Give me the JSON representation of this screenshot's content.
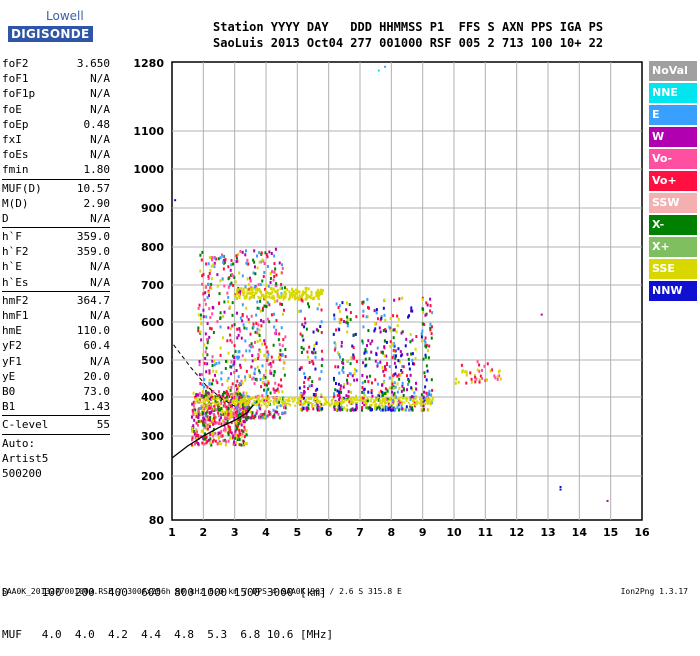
{
  "logo": {
    "line1": "Lowell",
    "line2": "DIGISONDE"
  },
  "header": {
    "line1": "Station YYYY DAY   DDD HHMMSS P1  FFS S AXN PPS IGA PS",
    "line2": "SaoLuis 2013 Oct04 277 001000 RSF 005 2 713 100 10+ 22"
  },
  "params_group1": [
    {
      "label": "foF2",
      "value": "3.650"
    },
    {
      "label": "foF1",
      "value": "N/A"
    },
    {
      "label": "foF1p",
      "value": "N/A"
    },
    {
      "label": "foE",
      "value": "N/A"
    },
    {
      "label": "foEp",
      "value": "0.48"
    },
    {
      "label": "fxI",
      "value": "N/A"
    },
    {
      "label": "foEs",
      "value": "N/A"
    },
    {
      "label": "fmin",
      "value": "1.80"
    }
  ],
  "params_group2": [
    {
      "label": "MUF(D)",
      "value": "10.57"
    },
    {
      "label": "M(D)",
      "value": "2.90"
    },
    {
      "label": "D",
      "value": "N/A"
    }
  ],
  "params_group3": [
    {
      "label": "h`F",
      "value": "359.0"
    },
    {
      "label": "h`F2",
      "value": "359.0"
    },
    {
      "label": "h`E",
      "value": "N/A"
    },
    {
      "label": "h`Es",
      "value": "N/A"
    }
  ],
  "params_group4": [
    {
      "label": "hmF2",
      "value": "364.7"
    },
    {
      "label": "hmF1",
      "value": "N/A"
    },
    {
      "label": "hmE",
      "value": "110.0"
    },
    {
      "label": "yF2",
      "value": "60.4"
    },
    {
      "label": "yF1",
      "value": "N/A"
    },
    {
      "label": "yE",
      "value": "20.0"
    },
    {
      "label": "B0",
      "value": "73.0"
    },
    {
      "label": "B1",
      "value": "1.43"
    }
  ],
  "params_group5": [
    {
      "label": "C-level",
      "value": "55"
    }
  ],
  "params_group6": [
    {
      "label": "Auto:",
      "value": ""
    },
    {
      "label": "Artist5",
      "value": ""
    },
    {
      "label": "500200",
      "value": ""
    }
  ],
  "legend": [
    {
      "label": "NoVal",
      "color": "#a0a0a0"
    },
    {
      "label": "NNE",
      "color": "#00e5ee"
    },
    {
      "label": "E",
      "color": "#3aa0ff"
    },
    {
      "label": "W",
      "color": "#b000b0"
    },
    {
      "label": "Vo-",
      "color": "#ff4fa0"
    },
    {
      "label": "Vo+",
      "color": "#ff1040"
    },
    {
      "label": "SSW",
      "color": "#f4b0b0"
    },
    {
      "label": "X-",
      "color": "#008000"
    },
    {
      "label": "X+",
      "color": "#7fbf5f"
    },
    {
      "label": "SSE",
      "color": "#d8d800"
    },
    {
      "label": "NNW",
      "color": "#1010d0"
    }
  ],
  "bottom_table": {
    "d_row": "D     100  200  400  600  800 1000 1500 3000 [km]",
    "muf_row": "MUF   4.0  4.0  4.2  4.4  4.8  5.3  6.8 10.6 [MHz]"
  },
  "footer": {
    "left": "SAA0K_2013277001000.RSF / 300fx256h 50 kHz 5.0 km / DPS-4 SAA0K 903 / 2.6 S 315.8 E",
    "right": "Ion2Png 1.3.17"
  },
  "chart_data": {
    "type": "scatter",
    "title": "",
    "xlabel": "",
    "ylabel": "",
    "xlim": [
      1,
      16
    ],
    "ylim": [
      80,
      1300
    ],
    "x_ticks": [
      1,
      2,
      3,
      4,
      5,
      6,
      7,
      8,
      9,
      10,
      11,
      12,
      13,
      14,
      15,
      16
    ],
    "y_ticks": [
      80,
      200,
      300,
      400,
      500,
      600,
      700,
      800,
      900,
      1000,
      1100,
      1280
    ],
    "grid": true,
    "y_scale": "nonlinear (virtual height)",
    "clusters": [
      {
        "name": "o-trace low",
        "x_range": [
          1.6,
          3.4
        ],
        "y_range": [
          280,
          420
        ],
        "colors": [
          "#ff1040",
          "#b000b0",
          "#d8d800",
          "#008000",
          "#ff4fa0"
        ]
      },
      {
        "name": "F spread",
        "x_range": [
          1.8,
          4.6
        ],
        "y_range": [
          350,
          800
        ],
        "colors": [
          "#ff1040",
          "#b000b0",
          "#ff4fa0",
          "#3aa0ff",
          "#008000",
          "#d8d800"
        ]
      },
      {
        "name": "band 2nd hop",
        "x_range": [
          2.9,
          5.8
        ],
        "y_range": [
          665,
          695
        ],
        "colors": [
          "#d8d800"
        ]
      },
      {
        "name": "columns 5-9",
        "x_range": [
          5.0,
          9.3
        ],
        "y_range": [
          360,
          680
        ],
        "colors": [
          "#ff1040",
          "#b000b0",
          "#1010d0",
          "#d8d800",
          "#3aa0ff",
          "#008000"
        ]
      },
      {
        "name": "sparse 10-11",
        "x_range": [
          10.0,
          11.5
        ],
        "y_range": [
          440,
          500
        ],
        "colors": [
          "#d8d800",
          "#ff4fa0",
          "#ff1040"
        ]
      }
    ],
    "isolated_points": [
      {
        "x": 7.6,
        "y": 1260,
        "color": "#00e5ee"
      },
      {
        "x": 7.8,
        "y": 1270,
        "color": "#3aa0ff"
      },
      {
        "x": 13.4,
        "y": 170,
        "color": "#1010d0"
      },
      {
        "x": 13.4,
        "y": 163,
        "color": "#1010d0"
      },
      {
        "x": 14.9,
        "y": 132,
        "color": "#b000b0"
      },
      {
        "x": 12.8,
        "y": 620,
        "color": "#b000b0"
      },
      {
        "x": 1.1,
        "y": 920,
        "color": "#1010d0"
      }
    ],
    "profile_curve": {
      "x": [
        1.0,
        1.5,
        2.0,
        2.5,
        3.0,
        3.4,
        3.6
      ],
      "y": [
        245,
        275,
        300,
        322,
        340,
        360,
        380
      ]
    },
    "dashed_curve": {
      "x": [
        1.05,
        1.6,
        2.1,
        2.6,
        3.1
      ],
      "y": [
        540,
        480,
        430,
        395,
        372
      ]
    }
  }
}
